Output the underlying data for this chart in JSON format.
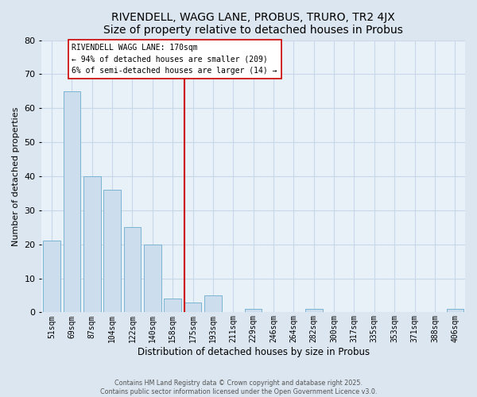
{
  "title": "RIVENDELL, WAGG LANE, PROBUS, TRURO, TR2 4JX",
  "subtitle": "Size of property relative to detached houses in Probus",
  "xlabel": "Distribution of detached houses by size in Probus",
  "ylabel": "Number of detached properties",
  "bar_labels": [
    "51sqm",
    "69sqm",
    "87sqm",
    "104sqm",
    "122sqm",
    "140sqm",
    "158sqm",
    "175sqm",
    "193sqm",
    "211sqm",
    "229sqm",
    "246sqm",
    "264sqm",
    "282sqm",
    "300sqm",
    "317sqm",
    "335sqm",
    "353sqm",
    "371sqm",
    "388sqm",
    "406sqm"
  ],
  "bar_values": [
    21,
    65,
    40,
    36,
    25,
    20,
    4,
    3,
    5,
    0,
    1,
    0,
    0,
    1,
    0,
    0,
    0,
    0,
    0,
    0,
    1
  ],
  "bar_color": "#ccdded",
  "bar_edge_color": "#7ab3d3",
  "vline_color": "#cc0000",
  "annotation_title": "RIVENDELL WAGG LANE: 170sqm",
  "annotation_line1": "← 94% of detached houses are smaller (209)",
  "annotation_line2": "6% of semi-detached houses are larger (14) →",
  "annotation_box_color": "#ffffff",
  "annotation_box_edge": "#cc0000",
  "ylim": [
    0,
    80
  ],
  "yticks": [
    0,
    10,
    20,
    30,
    40,
    50,
    60,
    70,
    80
  ],
  "footer1": "Contains HM Land Registry data © Crown copyright and database right 2025.",
  "footer2": "Contains public sector information licensed under the Open Government Licence v3.0.",
  "bg_color": "#dce6f0",
  "plot_bg_color": "#e8f0f8",
  "grid_color": "#c8d8e8"
}
